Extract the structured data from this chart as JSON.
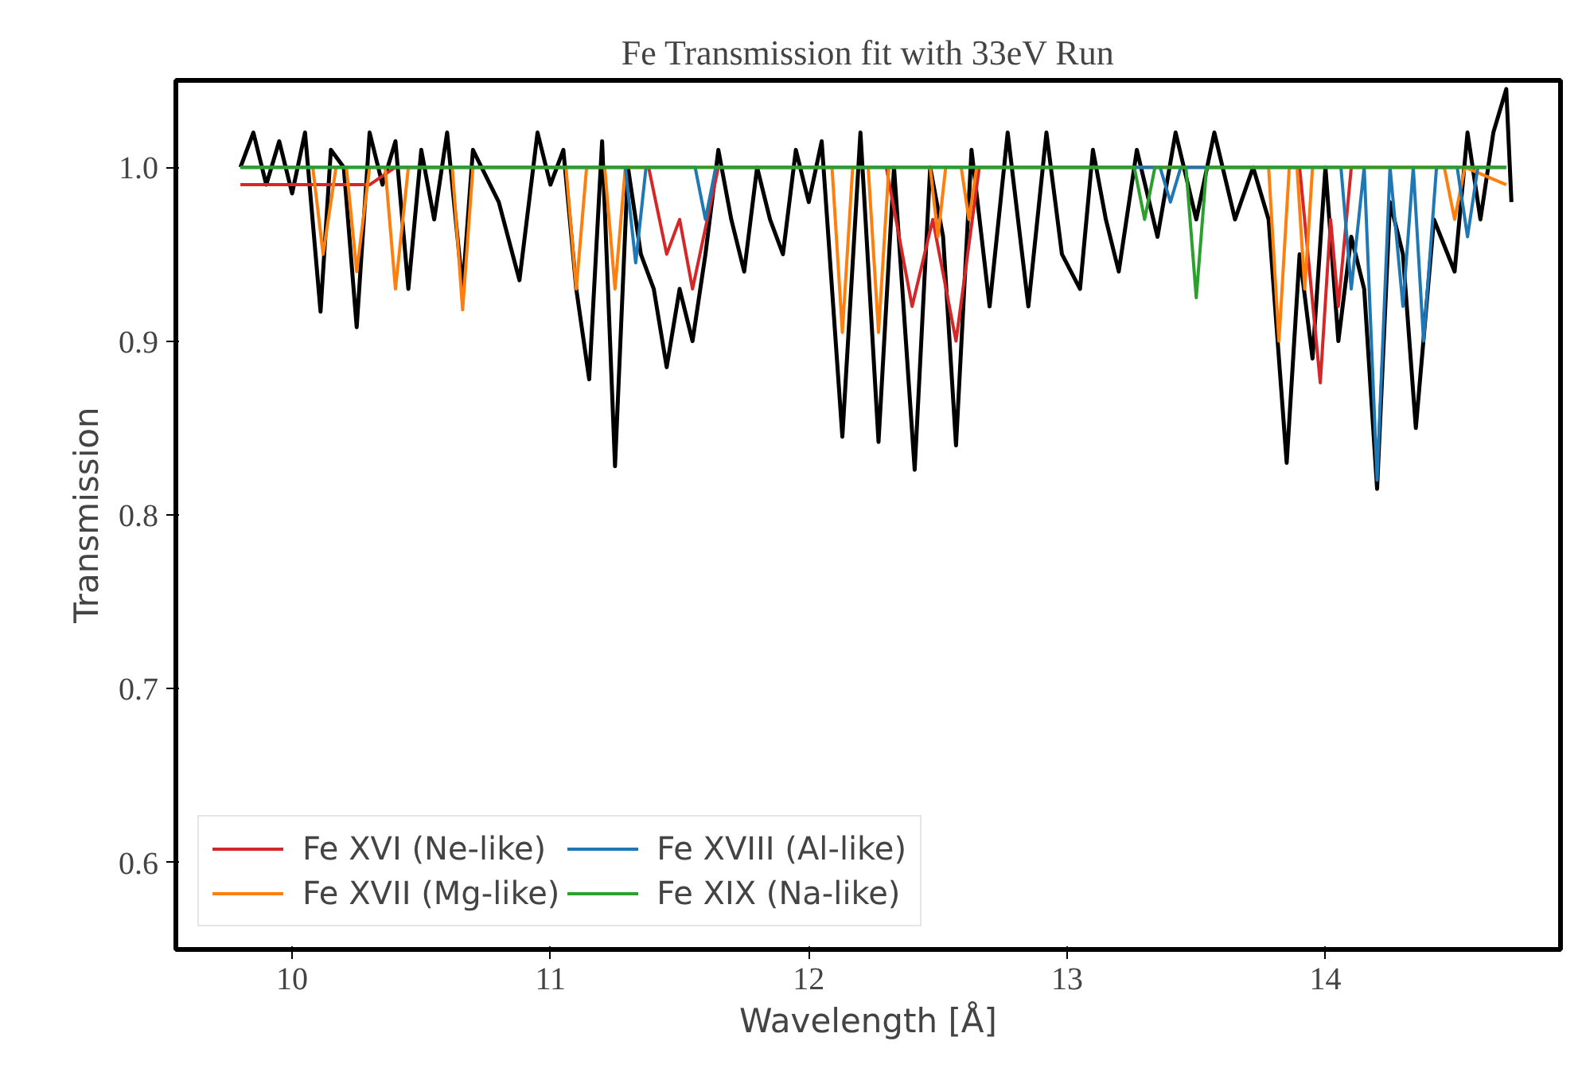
{
  "chart_data": {
    "type": "line",
    "title": "Fe Transmission fit with 33eV Run",
    "xlabel": "Wavelength [Å]",
    "ylabel": "Transmission",
    "xlim": [
      9.55,
      14.91
    ],
    "ylim": [
      0.55,
      1.05
    ],
    "xticks": [
      10,
      11,
      12,
      13,
      14
    ],
    "yticks": [
      {
        "value": 0.6,
        "label": "0.6"
      },
      {
        "value": 0.7,
        "label": "0.7"
      },
      {
        "value": 0.8,
        "label": "0.8"
      },
      {
        "value": 0.9,
        "label": "0.9"
      },
      {
        "value": 1,
        "label": "1.0"
      }
    ],
    "grid": false,
    "legend": "bottom left",
    "marker": "none",
    "line_style": "solid",
    "series": [
      {
        "color": "#000000",
        "x": [
          9.8,
          9.85,
          9.9,
          9.95,
          10.0,
          10.05,
          10.11,
          10.15,
          10.2,
          10.25,
          10.3,
          10.35,
          10.4,
          10.45,
          10.5,
          10.55,
          10.6,
          10.66,
          10.7,
          10.8,
          10.88,
          10.95,
          11.0,
          11.05,
          11.1,
          11.15,
          11.2,
          11.25,
          11.3,
          11.35,
          11.4,
          11.45,
          11.5,
          11.55,
          11.6,
          11.65,
          11.7,
          11.75,
          11.8,
          11.85,
          11.9,
          11.95,
          12.0,
          12.05,
          12.13,
          12.2,
          12.27,
          12.33,
          12.41,
          12.47,
          12.52,
          12.57,
          12.63,
          12.7,
          12.77,
          12.85,
          12.92,
          12.98,
          13.05,
          13.1,
          13.15,
          13.2,
          13.27,
          13.35,
          13.42,
          13.5,
          13.57,
          13.65,
          13.72,
          13.78,
          13.85,
          13.9,
          13.95,
          14.0,
          14.05,
          14.1,
          14.15,
          14.2,
          14.25,
          14.3,
          14.35,
          14.42,
          14.5,
          14.55,
          14.6,
          14.65,
          14.7,
          14.72
        ],
        "values": [
          1.0,
          1.02,
          0.99,
          1.015,
          0.985,
          1.02,
          0.917,
          1.01,
          1.0,
          0.908,
          1.02,
          0.99,
          1.015,
          0.93,
          1.01,
          0.97,
          1.02,
          0.93,
          1.01,
          0.98,
          0.935,
          1.02,
          0.99,
          1.01,
          0.93,
          0.878,
          1.015,
          0.828,
          1.0,
          0.95,
          0.93,
          0.885,
          0.93,
          0.9,
          0.95,
          1.01,
          0.97,
          0.94,
          1.0,
          0.97,
          0.95,
          1.01,
          0.98,
          1.015,
          0.845,
          1.02,
          0.842,
          1.0,
          0.826,
          1.0,
          0.96,
          0.84,
          1.01,
          0.92,
          1.02,
          0.92,
          1.02,
          0.95,
          0.93,
          1.01,
          0.97,
          0.94,
          1.01,
          0.96,
          1.02,
          0.97,
          1.02,
          0.97,
          1.0,
          0.97,
          0.83,
          0.95,
          0.89,
          1.0,
          0.9,
          0.96,
          0.93,
          0.815,
          0.98,
          0.95,
          0.85,
          0.97,
          0.94,
          1.02,
          0.97,
          1.02,
          1.045,
          0.98
        ]
      },
      {
        "name": "Fe XVI (Ne-like)",
        "color": "#d62728",
        "x": [
          9.8,
          10.3,
          10.4,
          11.38,
          11.45,
          11.5,
          11.55,
          11.65,
          12.3,
          12.4,
          12.48,
          12.57,
          12.66,
          13.9,
          13.98,
          14.02,
          14.05,
          14.1,
          14.7
        ],
        "values": [
          0.99,
          0.99,
          1.0,
          1.0,
          0.95,
          0.97,
          0.93,
          1.0,
          1.0,
          0.92,
          0.97,
          0.9,
          1.0,
          1.0,
          0.876,
          0.97,
          0.92,
          1.0,
          1.0
        ]
      },
      {
        "name": "Fe XVII (Mg-like)",
        "color": "#ff7f0e",
        "x": [
          9.8,
          10.08,
          10.12,
          10.17,
          10.21,
          10.25,
          10.3,
          10.36,
          10.4,
          10.45,
          10.62,
          10.66,
          10.7,
          11.06,
          11.1,
          11.14,
          11.21,
          11.25,
          11.29,
          12.09,
          12.13,
          12.17,
          12.23,
          12.27,
          12.31,
          12.47,
          12.5,
          12.53,
          12.59,
          12.62,
          12.65,
          13.78,
          13.82,
          13.86,
          13.89,
          13.92,
          13.95,
          14.46,
          14.5,
          14.54,
          14.7
        ],
        "values": [
          1.0,
          1.0,
          0.95,
          1.0,
          1.0,
          0.94,
          1.0,
          1.0,
          0.93,
          1.0,
          1.0,
          0.918,
          1.0,
          1.0,
          0.93,
          1.0,
          1.0,
          0.93,
          1.0,
          1.0,
          0.905,
          1.0,
          1.0,
          0.905,
          1.0,
          1.0,
          0.96,
          1.0,
          1.0,
          0.97,
          1.0,
          1.0,
          0.9,
          1.0,
          1.0,
          0.93,
          1.0,
          1.0,
          0.97,
          1.0,
          0.99
        ]
      },
      {
        "name": "Fe XVIII (Al-like)",
        "color": "#1f77b4",
        "x": [
          9.8,
          11.29,
          11.33,
          11.37,
          11.56,
          11.6,
          11.64,
          13.36,
          13.4,
          13.44,
          14.06,
          14.1,
          14.15,
          14.2,
          14.25,
          14.3,
          14.34,
          14.38,
          14.43,
          14.51,
          14.55,
          14.59,
          14.7
        ],
        "values": [
          1.0,
          1.0,
          0.945,
          1.0,
          1.0,
          0.97,
          1.0,
          1.0,
          0.98,
          1.0,
          1.0,
          0.93,
          1.0,
          0.82,
          1.0,
          0.92,
          1.0,
          0.9,
          1.0,
          1.0,
          0.96,
          1.0,
          1.0
        ]
      },
      {
        "name": "Fe XIX (Na-like)",
        "color": "#2ca02c",
        "x": [
          9.8,
          13.26,
          13.3,
          13.34,
          13.46,
          13.5,
          13.54,
          14.7
        ],
        "values": [
          1.0,
          1.0,
          0.97,
          1.0,
          1.0,
          0.925,
          1.0,
          1.0
        ]
      }
    ]
  }
}
